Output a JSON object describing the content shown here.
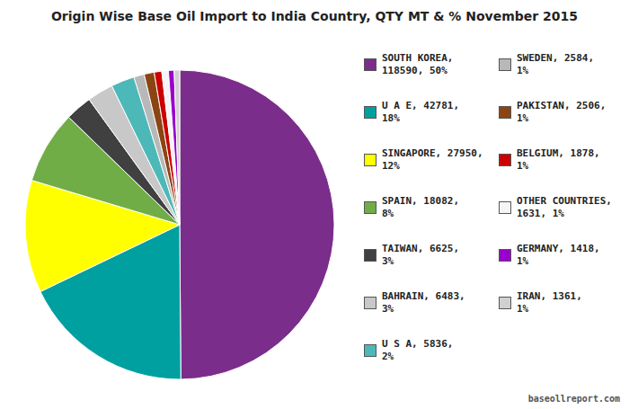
{
  "chart_data": {
    "type": "pie",
    "title": "Origin Wise Base Oil Import to India Country, QTY MT & % November 2015",
    "values": [
      118590,
      42781,
      27950,
      18082,
      6625,
      6483,
      5836,
      2584,
      2506,
      1878,
      1631,
      1418,
      1361
    ],
    "colors": [
      "#7b2d8b",
      "#00a0a0",
      "#ffff00",
      "#70ad47",
      "#404040",
      "#c8c8c8",
      "#4db8b8",
      "#b8b8b8",
      "#8b4513",
      "#cc0000",
      "#f5f5f5",
      "#9900cc",
      "#d0d0d0"
    ],
    "value_labels": [
      "SOUTH KOREA,\n118590, 50%",
      "U A E, 42781,\n18%",
      "SINGAPORE, 27950,\n12%",
      "SPAIN, 18082,\n8%",
      "TAIWAN, 6625,\n3%",
      "BAHRAIN, 6483,\n3%",
      "U S A, 5836,\n2%",
      "SWEDEN, 2584,\n1%",
      "PAKISTAN, 2506,\n1%",
      "BELGIUM, 1878,\n1%",
      "OTHER COUNTRIES,\n1631, 1%",
      "GERMANY, 1418,\n1%",
      "IRAN, 1361,\n1%"
    ],
    "data_labels": true,
    "annotations": [
      "baseollreport.com"
    ]
  }
}
